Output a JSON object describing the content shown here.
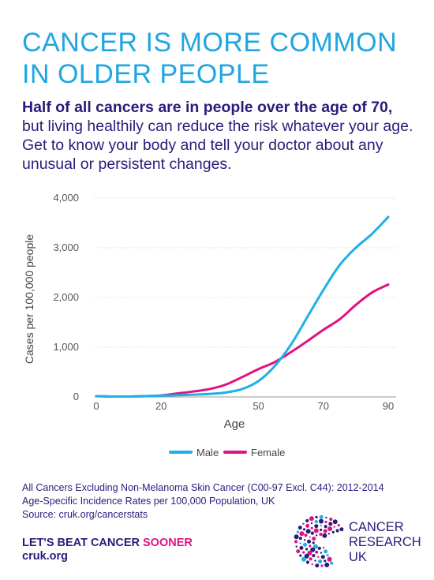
{
  "header": {
    "title_line1": "CANCER IS MORE COMMON",
    "title_line2": "IN OLDER PEOPLE"
  },
  "intro": {
    "bold": "Half of all cancers are in people over the age of 70,",
    "rest": "but living healthily can reduce the risk whatever your age. Get to know your body and tell your doctor about any unusual or persistent changes."
  },
  "colors": {
    "title": "#1fa6e0",
    "text": "#2e1a7a",
    "male": "#1fb0e6",
    "female": "#e0127f"
  },
  "chart_data": {
    "type": "line",
    "xlabel": "Age",
    "ylabel": "Cases per 100,000 people",
    "xlim": [
      0,
      90
    ],
    "ylim": [
      0,
      4000
    ],
    "x_ticks": [
      0,
      20,
      50,
      70,
      90
    ],
    "y_ticks": [
      0,
      1000,
      2000,
      3000,
      4000
    ],
    "x_tick_labels": [
      "0",
      "20",
      "50",
      "70",
      "90"
    ],
    "y_tick_labels": [
      "0",
      "1,000",
      "2,000",
      "3,000",
      "4,000"
    ],
    "legend_position": "bottom-center",
    "grid": "horizontal",
    "series": [
      {
        "name": "Male",
        "color": "#1fb0e6",
        "x": [
          0,
          5,
          10,
          15,
          20,
          25,
          30,
          35,
          40,
          45,
          50,
          55,
          60,
          65,
          70,
          75,
          80,
          85,
          90
        ],
        "y": [
          15,
          8,
          8,
          15,
          25,
          35,
          45,
          60,
          90,
          160,
          320,
          620,
          1050,
          1600,
          2150,
          2650,
          3000,
          3280,
          3620
        ]
      },
      {
        "name": "Female",
        "color": "#e0127f",
        "x": [
          0,
          5,
          10,
          15,
          20,
          25,
          30,
          35,
          40,
          45,
          50,
          55,
          60,
          65,
          70,
          75,
          80,
          85,
          90
        ],
        "y": [
          15,
          8,
          8,
          15,
          30,
          70,
          110,
          160,
          250,
          400,
          560,
          700,
          900,
          1120,
          1350,
          1560,
          1850,
          2100,
          2260
        ]
      }
    ]
  },
  "footer": {
    "source_line1": "All Cancers Excluding Non-Melanoma Skin Cancer (C00-97 Excl. C44): 2012-2014",
    "source_line2": "Age-Specific Incidence Rates per 100,000 Population, UK",
    "source_line3": "Source: cruk.org/cancerstats",
    "slogan_main": "LET'S BEAT CANCER ",
    "slogan_accent": "SOONER",
    "site": "cruk.org"
  },
  "logo": {
    "line1": "CANCER",
    "line2": "RESEARCH",
    "line3": "UK",
    "icon": "cancer-research-uk-dots-logo"
  }
}
